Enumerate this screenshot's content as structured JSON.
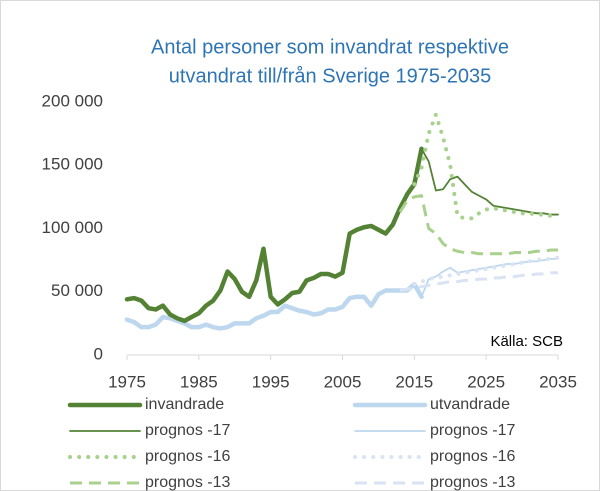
{
  "chart_data": {
    "type": "line",
    "title": [
      "Antal personer som invandrat respektive",
      "utvandrat till/från Sverige 1975-2035"
    ],
    "annotation": "Källa: SCB",
    "xlim": [
      1975,
      2035
    ],
    "xticks": [
      1975,
      1985,
      1995,
      2005,
      2015,
      2025,
      2035
    ],
    "ylim": [
      0,
      200000
    ],
    "yticks": [
      {
        "value": 0,
        "label": "0"
      },
      {
        "value": 50000,
        "label": "50 000"
      },
      {
        "value": 100000,
        "label": "100 000"
      },
      {
        "value": 150000,
        "label": "150 000"
      },
      {
        "value": 200000,
        "label": "200 000"
      }
    ],
    "grid": false,
    "legend": "bottom",
    "series": [
      {
        "name": "invandrade",
        "color": "#548235",
        "style": "thick",
        "x": [
          1975,
          1976,
          1977,
          1978,
          1979,
          1980,
          1981,
          1982,
          1983,
          1984,
          1985,
          1986,
          1987,
          1988,
          1989,
          1990,
          1991,
          1992,
          1993,
          1994,
          1995,
          1996,
          1997,
          1998,
          1999,
          2000,
          2001,
          2002,
          2003,
          2004,
          2005,
          2006,
          2007,
          2008,
          2009,
          2010,
          2011,
          2012,
          2013,
          2014,
          2015,
          2016
        ],
        "values": [
          44000,
          45000,
          43000,
          37000,
          36000,
          39000,
          32000,
          29000,
          27000,
          30000,
          33000,
          39000,
          43000,
          51000,
          66000,
          60000,
          50000,
          46000,
          59000,
          84000,
          46000,
          40000,
          44000,
          49000,
          50000,
          59000,
          61000,
          64000,
          64000,
          62000,
          65000,
          96000,
          99000,
          101000,
          102000,
          99000,
          96000,
          103000,
          116000,
          127000,
          135000,
          163000
        ]
      },
      {
        "name": "utvandrade",
        "color": "#bdd7ee",
        "style": "thick",
        "x": [
          1975,
          1976,
          1977,
          1978,
          1979,
          1980,
          1981,
          1982,
          1983,
          1984,
          1985,
          1986,
          1987,
          1988,
          1989,
          1990,
          1991,
          1992,
          1993,
          1994,
          1995,
          1996,
          1997,
          1998,
          1999,
          2000,
          2001,
          2002,
          2003,
          2004,
          2005,
          2006,
          2007,
          2008,
          2009,
          2010,
          2011,
          2012,
          2013,
          2014,
          2015,
          2016
        ],
        "values": [
          28000,
          26000,
          22000,
          22000,
          24000,
          30000,
          29000,
          27000,
          25000,
          22000,
          22000,
          24000,
          22000,
          21000,
          22000,
          25000,
          25000,
          25000,
          29000,
          31000,
          34000,
          34000,
          39000,
          37000,
          35000,
          34000,
          32000,
          33000,
          36000,
          36000,
          38000,
          45000,
          46000,
          46000,
          39000,
          48000,
          51000,
          51000,
          51000,
          51000,
          56000,
          46000
        ]
      },
      {
        "name": "prognos -17",
        "color": "#548235",
        "style": "solid",
        "x": [
          2016,
          2017,
          2018,
          2019,
          2020,
          2021,
          2022,
          2023,
          2024,
          2025,
          2026,
          2027,
          2028,
          2029,
          2030,
          2031,
          2032,
          2033,
          2034,
          2035
        ],
        "values": [
          163000,
          153000,
          130000,
          131000,
          139000,
          141000,
          135000,
          129000,
          126000,
          123000,
          118000,
          117000,
          116000,
          115000,
          114000,
          113000,
          112000,
          112000,
          111000,
          111000
        ]
      },
      {
        "name": "prognos -17",
        "color": "#bdd7ee",
        "style": "solid",
        "x": [
          2016,
          2017,
          2018,
          2019,
          2020,
          2021,
          2022,
          2023,
          2024,
          2025,
          2026,
          2027,
          2028,
          2029,
          2030,
          2031,
          2032,
          2033,
          2034,
          2035
        ],
        "values": [
          46000,
          60000,
          62000,
          66000,
          69000,
          65000,
          66000,
          67000,
          68000,
          69000,
          70000,
          71000,
          72000,
          72000,
          73000,
          74000,
          74000,
          75000,
          76000,
          76000
        ]
      },
      {
        "name": "prognos -16",
        "color": "#a9d18e",
        "style": "dotted",
        "x": [
          2015,
          2016,
          2017,
          2018,
          2019,
          2020,
          2021,
          2022,
          2023,
          2024,
          2025,
          2026,
          2027,
          2028,
          2029,
          2030,
          2031,
          2032,
          2033,
          2034,
          2035
        ],
        "values": [
          135000,
          148000,
          175000,
          190000,
          172000,
          150000,
          110000,
          108000,
          108000,
          112000,
          115000,
          116000,
          115000,
          114000,
          113000,
          112000,
          112000,
          111000,
          111000,
          110000,
          110000
        ]
      },
      {
        "name": "prognos -16",
        "color": "#dae3f3",
        "style": "dotted",
        "x": [
          2015,
          2016,
          2017,
          2018,
          2019,
          2020,
          2021,
          2022,
          2023,
          2024,
          2025,
          2026,
          2027,
          2028,
          2029,
          2030,
          2031,
          2032,
          2033,
          2034,
          2035
        ],
        "values": [
          56000,
          58000,
          60000,
          61000,
          62000,
          63000,
          64000,
          65000,
          66000,
          67000,
          68000,
          69000,
          70000,
          71000,
          72000,
          73000,
          74000,
          75000,
          76000,
          76000,
          77000
        ]
      },
      {
        "name": "prognos -13",
        "color": "#a9d18e",
        "style": "dashed",
        "x": [
          2013,
          2014,
          2015,
          2016,
          2017,
          2018,
          2019,
          2020,
          2021,
          2022,
          2023,
          2024,
          2025,
          2026,
          2027,
          2028,
          2029,
          2030,
          2031,
          2032,
          2033,
          2034,
          2035
        ],
        "values": [
          113000,
          122000,
          125000,
          126000,
          100000,
          96000,
          88000,
          84000,
          82000,
          81000,
          81000,
          80000,
          80000,
          80000,
          80000,
          80000,
          81000,
          81000,
          81000,
          82000,
          82000,
          83000,
          83000
        ]
      },
      {
        "name": "prognos -13",
        "color": "#dae3f3",
        "style": "dashed",
        "x": [
          2013,
          2014,
          2015,
          2016,
          2017,
          2018,
          2019,
          2020,
          2021,
          2022,
          2023,
          2024,
          2025,
          2026,
          2027,
          2028,
          2029,
          2030,
          2031,
          2032,
          2033,
          2034,
          2035
        ],
        "values": [
          51000,
          52000,
          53000,
          54000,
          55000,
          56000,
          57000,
          58000,
          58000,
          59000,
          59000,
          60000,
          60000,
          61000,
          61000,
          62000,
          62000,
          63000,
          63000,
          64000,
          64000,
          65000,
          65000
        ]
      }
    ]
  }
}
